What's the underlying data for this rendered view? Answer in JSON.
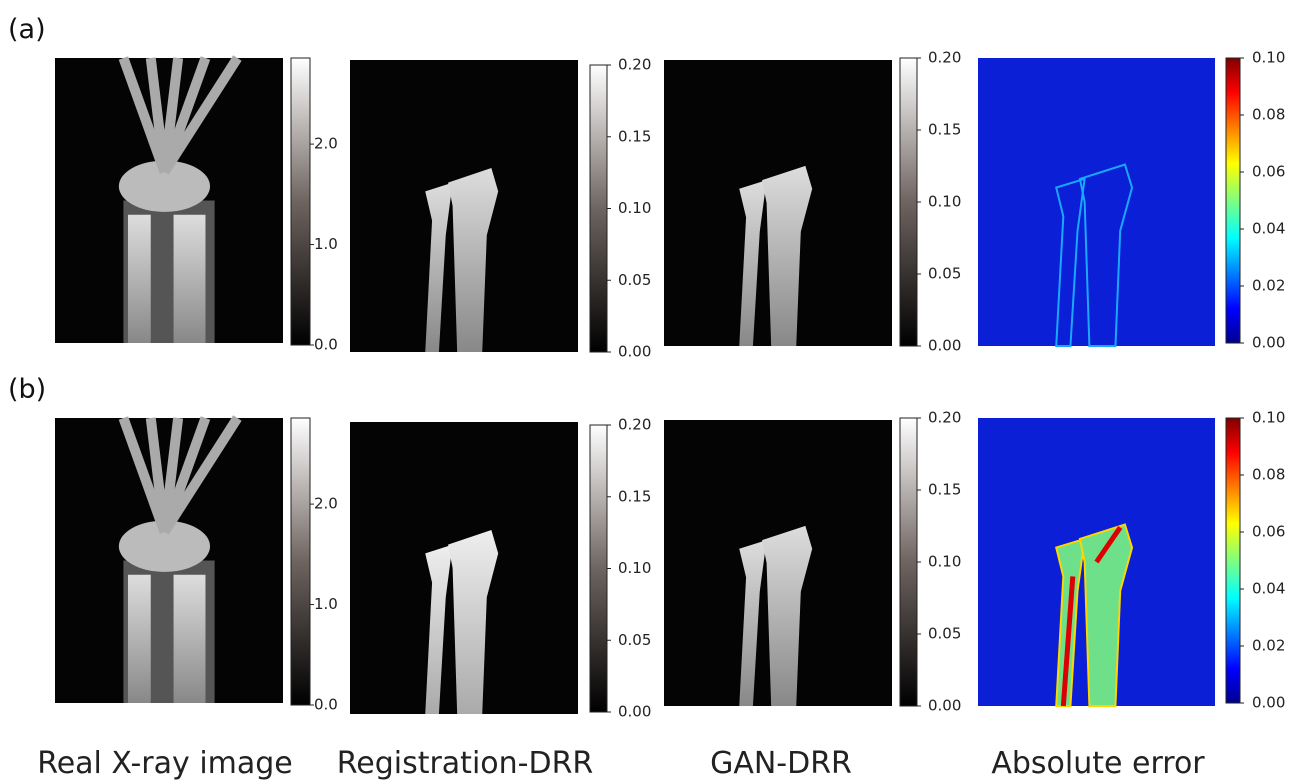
{
  "panels": [
    {
      "label": "(a)",
      "images": [
        {
          "colorbar_ticks": [
            "0.0",
            "1.0",
            "2.0"
          ]
        },
        {
          "colorbar_ticks": [
            "0.00",
            "0.05",
            "0.10",
            "0.15",
            "0.20"
          ]
        },
        {
          "colorbar_ticks": [
            "0.00",
            "0.05",
            "0.10",
            "0.15",
            "0.20"
          ]
        },
        {
          "colorbar_ticks": [
            "0.00",
            "0.02",
            "0.04",
            "0.06",
            "0.08",
            "0.10"
          ]
        }
      ]
    },
    {
      "label": "(b)",
      "images": [
        {
          "colorbar_ticks": [
            "0.0",
            "1.0",
            "2.0"
          ]
        },
        {
          "colorbar_ticks": [
            "0.00",
            "0.05",
            "0.10",
            "0.15",
            "0.20"
          ]
        },
        {
          "colorbar_ticks": [
            "0.00",
            "0.05",
            "0.10",
            "0.15",
            "0.20"
          ]
        },
        {
          "colorbar_ticks": [
            "0.00",
            "0.02",
            "0.04",
            "0.06",
            "0.08",
            "0.10"
          ]
        }
      ]
    }
  ],
  "column_titles": [
    "Real X-ray image",
    "Registration-DRR",
    "GAN-DRR",
    "Absolute error"
  ]
}
